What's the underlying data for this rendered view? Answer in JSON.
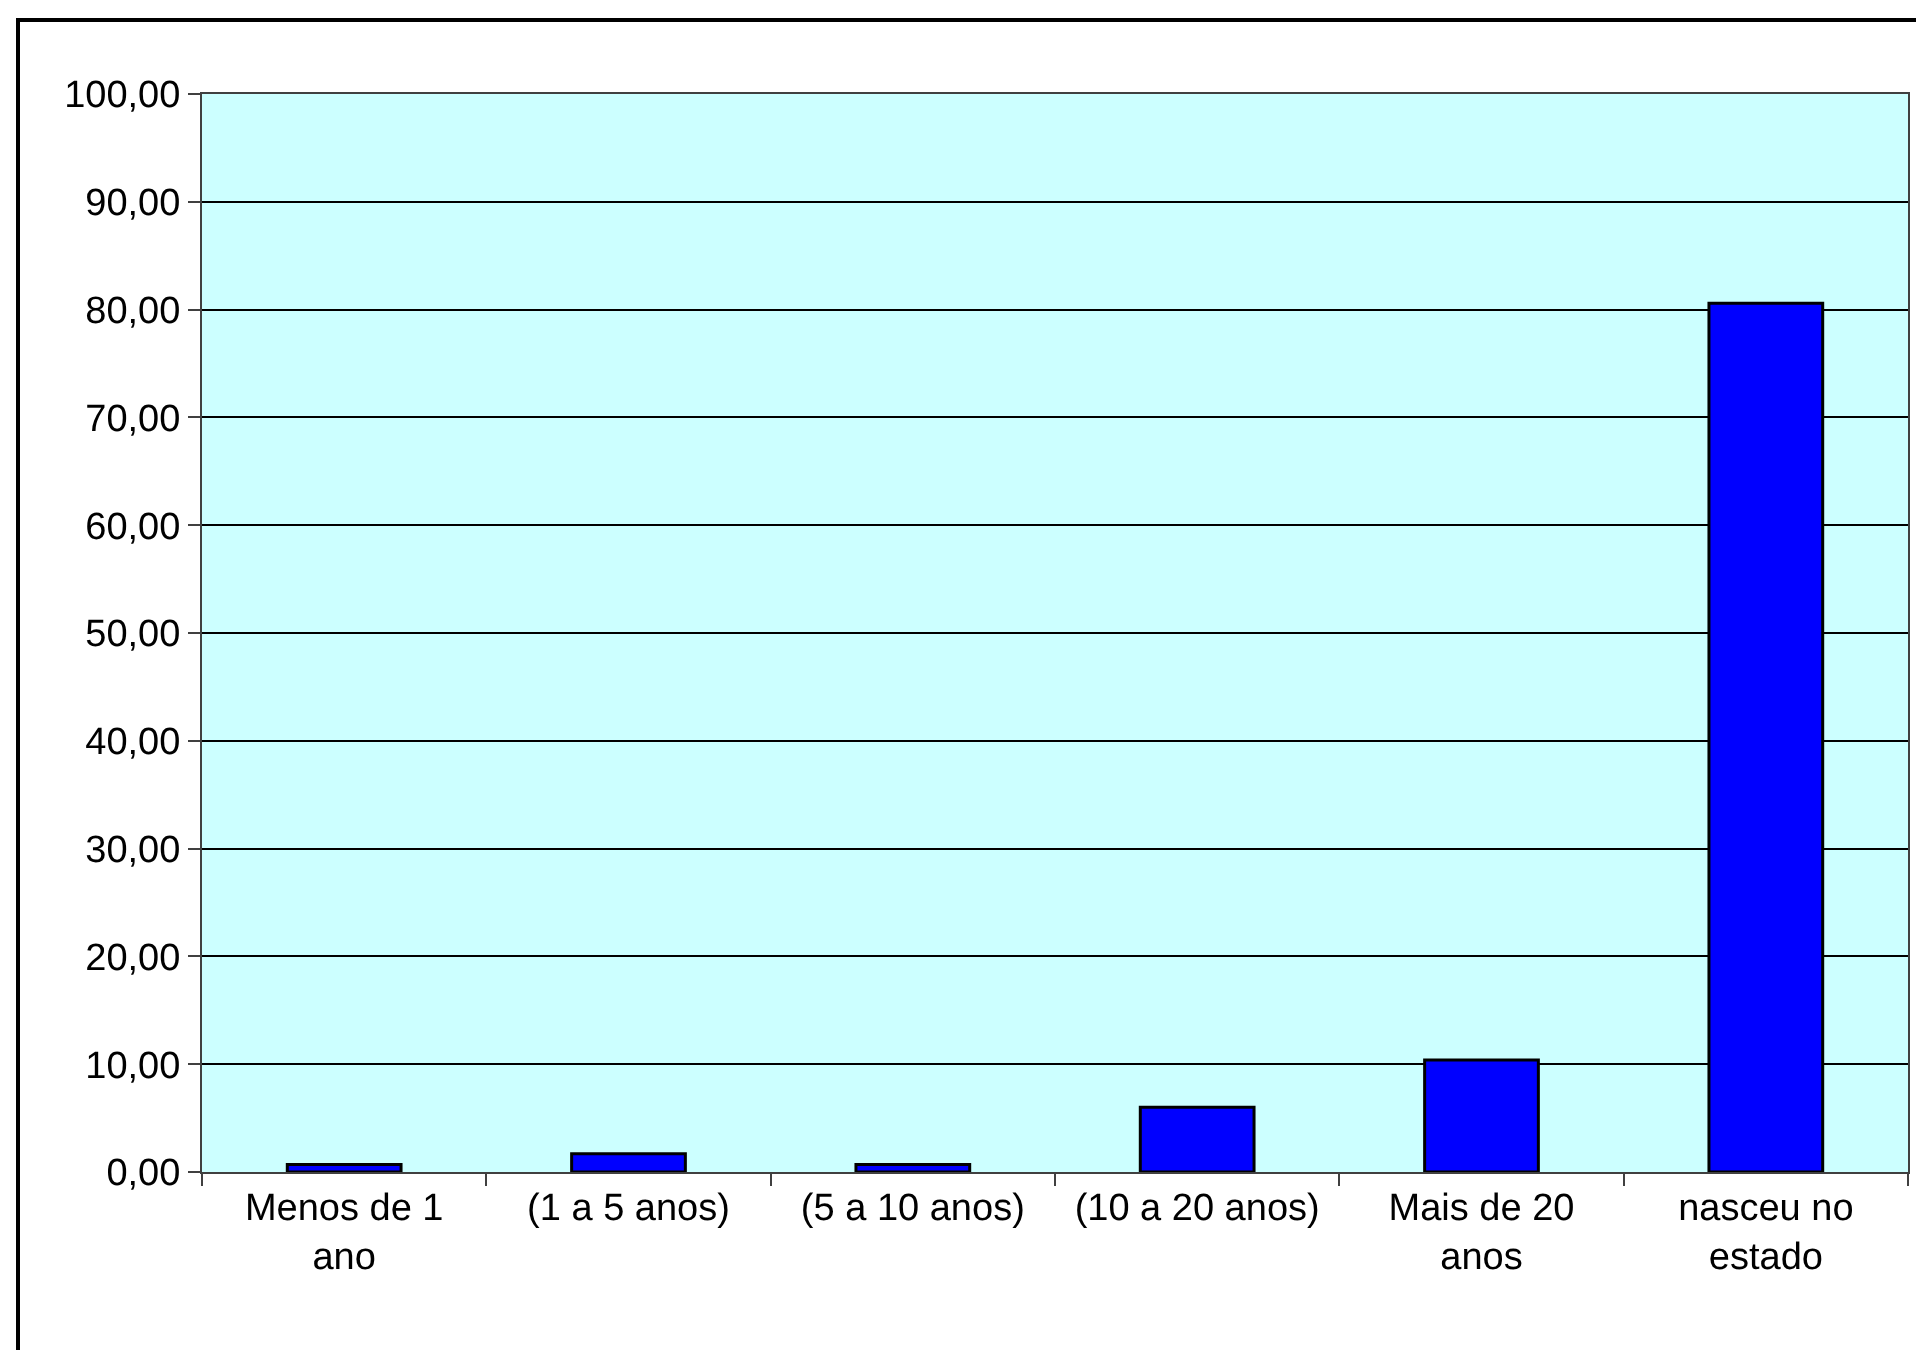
{
  "chart_data": {
    "type": "bar",
    "categories": [
      "Menos de 1 ano",
      "(1 a 5 anos)",
      "(5 a 10 anos)",
      "(10 a 20 anos)",
      "Mais de 20 anos",
      "nasceu no estado"
    ],
    "values": [
      0.7,
      1.7,
      0.7,
      6.0,
      10.4,
      80.6
    ],
    "color": "#0000ff",
    "ylim": [
      0,
      100
    ],
    "yticks": [
      {
        "value": 0,
        "label": "0,00"
      },
      {
        "value": 10,
        "label": "10,00"
      },
      {
        "value": 20,
        "label": "20,00"
      },
      {
        "value": 30,
        "label": "30,00"
      },
      {
        "value": 40,
        "label": "40,00"
      },
      {
        "value": 50,
        "label": "50,00"
      },
      {
        "value": 60,
        "label": "60,00"
      },
      {
        "value": 70,
        "label": "70,00"
      },
      {
        "value": 80,
        "label": "80,00"
      },
      {
        "value": 90,
        "label": "90,00"
      },
      {
        "value": 100,
        "label": "100,00"
      }
    ],
    "grid": "y"
  }
}
